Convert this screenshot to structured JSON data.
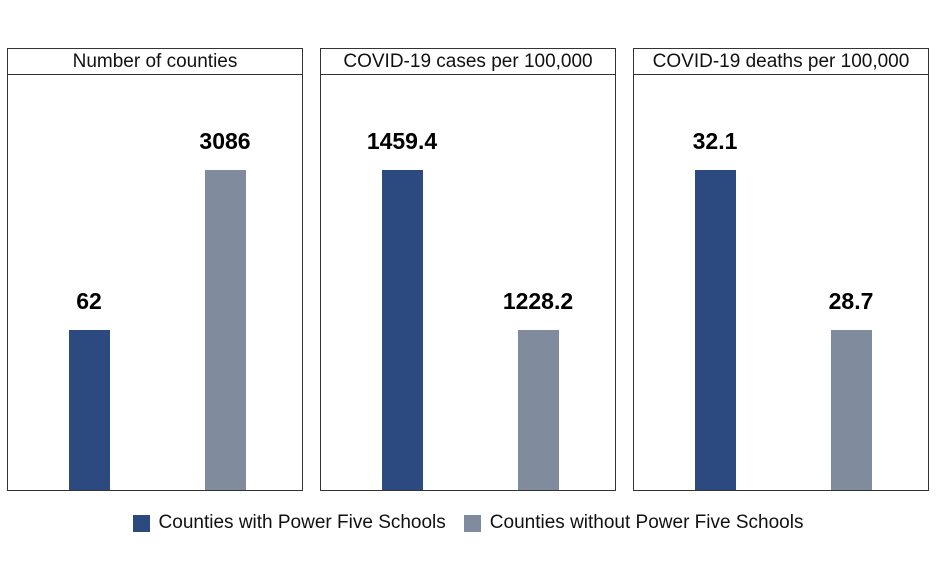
{
  "colors": {
    "with": "#2d4a80",
    "without": "#808b9e"
  },
  "legend": {
    "with_label": "Counties with Power Five Schools",
    "without_label": "Counties without Power Five Schools"
  },
  "chart_data": [
    {
      "type": "bar",
      "title": "Number of counties",
      "categories": [
        "Counties with Power Five Schools",
        "Counties without Power Five Schools"
      ],
      "values": [
        62,
        3086
      ],
      "value_labels": [
        "62",
        "3086"
      ],
      "grid": false,
      "legend_position": "bottom"
    },
    {
      "type": "bar",
      "title": "COVID-19 cases per 100,000",
      "categories": [
        "Counties with Power Five Schools",
        "Counties without Power Five Schools"
      ],
      "values": [
        1459.4,
        1228.2
      ],
      "value_labels": [
        "1459.4",
        "1228.2"
      ],
      "grid": false,
      "legend_position": "bottom"
    },
    {
      "type": "bar",
      "title": "COVID-19 deaths per 100,000",
      "categories": [
        "Counties with Power Five Schools",
        "Counties without Power Five Schools"
      ],
      "values": [
        32.1,
        28.7
      ],
      "value_labels": [
        "32.1",
        "28.7"
      ],
      "grid": false,
      "legend_position": "bottom"
    }
  ]
}
